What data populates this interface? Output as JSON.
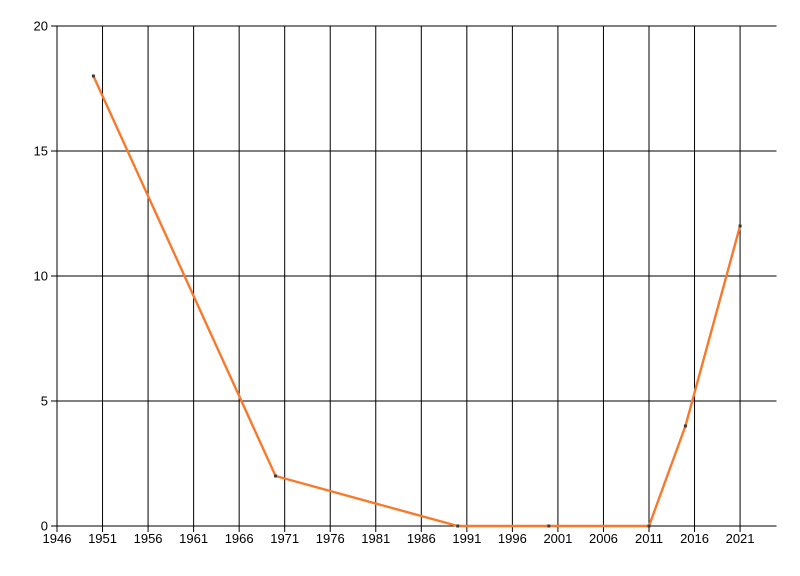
{
  "page": {
    "background": "#ffffff"
  },
  "chart_data": {
    "type": "line",
    "title": "",
    "xlabel": "",
    "ylabel": "",
    "x": [
      1950,
      1970,
      1990,
      2000,
      2011,
      2015,
      2021
    ],
    "values": [
      18,
      2,
      0,
      0,
      0,
      4,
      12
    ],
    "xlim": [
      1946,
      2025
    ],
    "ylim": [
      0,
      20
    ],
    "xticks": [
      1946,
      1951,
      1956,
      1961,
      1966,
      1971,
      1976,
      1981,
      1986,
      1991,
      1996,
      2001,
      2006,
      2011,
      2016,
      2021
    ],
    "yticks": [
      0,
      5,
      10,
      15,
      20
    ],
    "grid": true,
    "legend": false,
    "line_color": "#f8792c",
    "marker_color": "#3a3a3a",
    "grid_color": "#000000",
    "tick_label_color": "#000000"
  }
}
